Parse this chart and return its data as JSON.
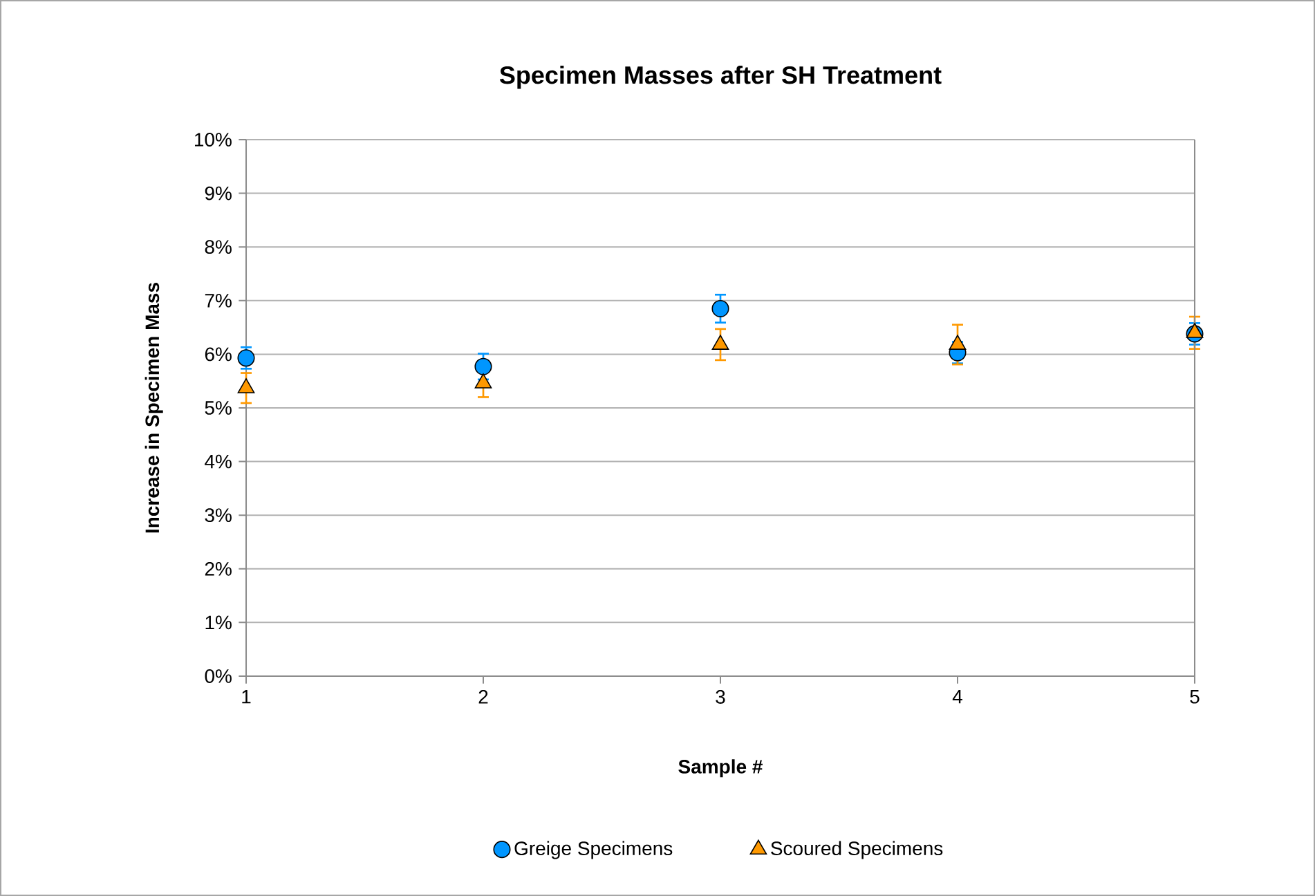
{
  "chart_data": {
    "type": "scatter",
    "title": "Specimen Masses after SH Treatment",
    "xlabel": "Sample #",
    "ylabel": "Increase in Specimen Mass",
    "x": [
      1,
      2,
      3,
      4,
      5
    ],
    "series": [
      {
        "name": "Greige Specimens",
        "color": "#0096ff",
        "marker": "circle",
        "values": [
          5.93,
          5.77,
          6.85,
          6.03,
          6.38
        ],
        "errors": [
          0.2,
          0.24,
          0.26,
          0.2,
          0.2
        ]
      },
      {
        "name": "Scoured Specimens",
        "color": "#ff9900",
        "marker": "triangle",
        "values": [
          5.37,
          5.46,
          6.18,
          6.18,
          6.4
        ],
        "errors": [
          0.28,
          0.26,
          0.29,
          0.37,
          0.3
        ]
      }
    ],
    "xlim": [
      1,
      5
    ],
    "xticks": [
      1,
      2,
      3,
      4,
      5
    ],
    "ylim": [
      0,
      10
    ],
    "yticks": [
      {
        "value": 0,
        "label": "0%"
      },
      {
        "value": 1,
        "label": "1%"
      },
      {
        "value": 2,
        "label": "2%"
      },
      {
        "value": 3,
        "label": "3%"
      },
      {
        "value": 4,
        "label": "4%"
      },
      {
        "value": 5,
        "label": "5%"
      },
      {
        "value": 6,
        "label": "6%"
      },
      {
        "value": 7,
        "label": "7%"
      },
      {
        "value": 8,
        "label": "8%"
      },
      {
        "value": 9,
        "label": "9%"
      },
      {
        "value": 10,
        "label": "10%"
      }
    ],
    "grid": "y",
    "legend": "bottom"
  }
}
